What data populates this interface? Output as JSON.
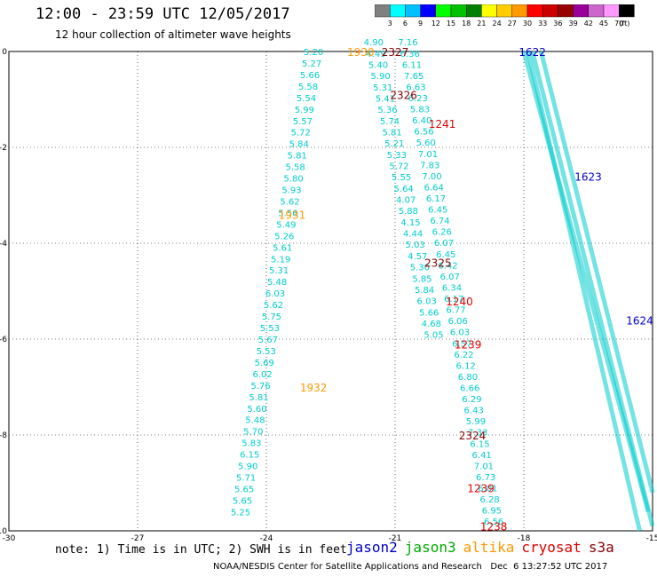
{
  "header": {
    "title": "12:00 - 23:59 UTC 12/05/2017",
    "subtitle": "12 hour collection of altimeter wave heights"
  },
  "color_scale": {
    "unit": "(ft)",
    "labels": [
      "3",
      "6",
      "9",
      "12",
      "15",
      "18",
      "21",
      "24",
      "27",
      "30",
      "33",
      "36",
      "39",
      "42",
      "45",
      "70"
    ],
    "colors": [
      "#808080",
      "#00ffff",
      "#00bfff",
      "#0000ff",
      "#00ff00",
      "#00c000",
      "#008000",
      "#ffff00",
      "#ffcc00",
      "#ff9900",
      "#ff0000",
      "#cc0000",
      "#990000",
      "#990099",
      "#cc66cc",
      "#ff99ff",
      "#000000"
    ]
  },
  "axes": {
    "x_ticks": [
      "-30",
      "-27",
      "-24",
      "-21",
      "-18",
      "-15"
    ],
    "y_ticks": [
      "0",
      "-2",
      "-4",
      "-6",
      "-8",
      "-10"
    ]
  },
  "note": "note: 1) Time is in UTC; 2) SWH is in feet",
  "legend": [
    {
      "label": "jason2",
      "color": "#0000cc"
    },
    {
      "label": "jason3",
      "color": "#00aa00"
    },
    {
      "label": "altika",
      "color": "#ff9900"
    },
    {
      "label": "cryosat",
      "color": "#dd0000"
    },
    {
      "label": "s3a",
      "color": "#880000"
    }
  ],
  "footer": "NOAA/NESDIS Center for Satellite Applications and Research   Dec  6 13:27:52 UTC 2017",
  "tracks": {
    "left_values": [
      "5.20",
      "5.27",
      "5.66",
      "5.58",
      "5.54",
      "5.99",
      "5.57",
      "5.72",
      "5.84",
      "5.81",
      "5.58",
      "5.80",
      "5.93",
      "5.62",
      "5.56",
      "5.49",
      "5.26",
      "5.61",
      "5.19",
      "5.31",
      "5.48",
      "6.03",
      "5.62",
      "5.75",
      "5.53",
      "5.67",
      "5.53",
      "5.69",
      "6.02",
      "5.76",
      "5.81",
      "5.60",
      "5.48",
      "5.70",
      "5.83",
      "6.15",
      "5.90",
      "5.71",
      "5.65",
      "5.65",
      "5.25"
    ],
    "mid_values": [
      "4.90",
      "4.49",
      "5.40",
      "5.90",
      "5.31",
      "5.41",
      "5.36",
      "5.74",
      "5.81",
      "5.21",
      "5.33",
      "5.72",
      "5.55",
      "5.64",
      "4.07",
      "5.88",
      "4.15",
      "4.44",
      "5.03",
      "4.57",
      "5.30",
      "5.85",
      "5.84",
      "6.03",
      "5.66",
      "4.68",
      "5.05"
    ],
    "right_values": [
      "7.16",
      "6.36",
      "6.11",
      "7.65",
      "6.63",
      "6.23",
      "5.83",
      "6.40",
      "6.56",
      "5.60",
      "7.01",
      "7.83",
      "7.00",
      "6.64",
      "6.17",
      "6.45",
      "6.74",
      "6.26",
      "6.07",
      "6.45",
      "6.42",
      "6.07",
      "6.34",
      "6.17",
      "6.77",
      "6.06",
      "6.03",
      "6.57",
      "6.22",
      "6.12",
      "6.80",
      "6.66",
      "6.29",
      "6.43",
      "5.99",
      "7.33",
      "6.15",
      "6.41",
      "7.01",
      "6.73",
      "6.01",
      "6.28",
      "6.95",
      "6.56"
    ],
    "pass_labels": [
      {
        "text": "1930",
        "color": "#ff9900",
        "lon": -21.8,
        "lat": 0.0
      },
      {
        "text": "1931",
        "color": "#ff9900",
        "lon": -23.4,
        "lat": -3.4
      },
      {
        "text": "1932",
        "color": "#ff9900",
        "lon": -22.9,
        "lat": -7.0
      },
      {
        "text": "2327",
        "color": "#880000",
        "lon": -21.0,
        "lat": 0.0
      },
      {
        "text": "2326",
        "color": "#880000",
        "lon": -20.8,
        "lat": -0.9
      },
      {
        "text": "2325",
        "color": "#880000",
        "lon": -20.0,
        "lat": -4.4
      },
      {
        "text": "2324",
        "color": "#880000",
        "lon": -19.2,
        "lat": -8.0
      },
      {
        "text": "1241",
        "color": "#dd0000",
        "lon": -19.9,
        "lat": -1.5
      },
      {
        "text": "1240",
        "color": "#dd0000",
        "lon": -19.5,
        "lat": -5.2
      },
      {
        "text": "1239",
        "color": "#dd0000",
        "lon": -19.3,
        "lat": -6.1
      },
      {
        "text": "1239",
        "color": "#dd0000",
        "lon": -19.0,
        "lat": -9.1
      },
      {
        "text": "1238",
        "color": "#dd0000",
        "lon": -18.7,
        "lat": -9.9
      },
      {
        "text": "1622",
        "color": "#0000cc",
        "lon": -17.8,
        "lat": 0.0
      },
      {
        "text": "1623",
        "color": "#0000cc",
        "lon": -16.5,
        "lat": -2.6
      },
      {
        "text": "1624",
        "color": "#0000cc",
        "lon": -15.3,
        "lat": -5.6
      }
    ]
  }
}
